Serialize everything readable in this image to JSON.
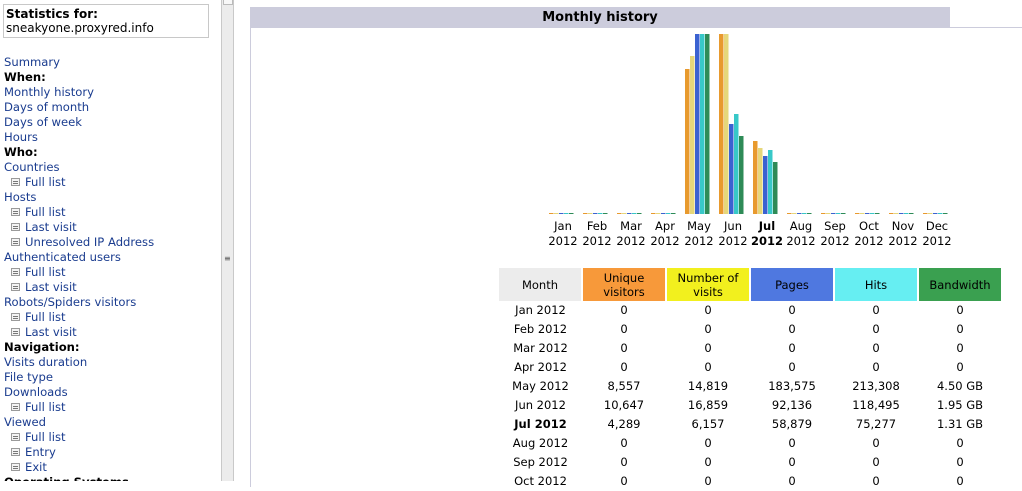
{
  "sidebar": {
    "stats_label": "Statistics for:",
    "site": "sneakyone.proxyred.info",
    "items": [
      {
        "type": "link",
        "label": "Summary"
      },
      {
        "type": "head",
        "label": "When:"
      },
      {
        "type": "link",
        "label": "Monthly history"
      },
      {
        "type": "link",
        "label": "Days of month"
      },
      {
        "type": "link",
        "label": "Days of week"
      },
      {
        "type": "link",
        "label": "Hours"
      },
      {
        "type": "head",
        "label": "Who:"
      },
      {
        "type": "link",
        "label": "Countries"
      },
      {
        "type": "sub",
        "label": "Full list"
      },
      {
        "type": "link",
        "label": "Hosts"
      },
      {
        "type": "sub",
        "label": "Full list"
      },
      {
        "type": "sub",
        "label": "Last visit"
      },
      {
        "type": "sub",
        "label": "Unresolved IP Address"
      },
      {
        "type": "link",
        "label": "Authenticated users"
      },
      {
        "type": "sub",
        "label": "Full list"
      },
      {
        "type": "sub",
        "label": "Last visit"
      },
      {
        "type": "link",
        "label": "Robots/Spiders visitors"
      },
      {
        "type": "sub",
        "label": "Full list"
      },
      {
        "type": "sub",
        "label": "Last visit"
      },
      {
        "type": "head",
        "label": "Navigation:"
      },
      {
        "type": "link",
        "label": "Visits duration"
      },
      {
        "type": "link",
        "label": "File type"
      },
      {
        "type": "link",
        "label": "Downloads"
      },
      {
        "type": "sub",
        "label": "Full list"
      },
      {
        "type": "link",
        "label": "Viewed"
      },
      {
        "type": "sub",
        "label": "Full list"
      },
      {
        "type": "sub",
        "label": "Entry"
      },
      {
        "type": "sub",
        "label": "Exit"
      },
      {
        "type": "head",
        "label": "Operating Systems"
      }
    ]
  },
  "main": {
    "title": "Monthly history",
    "current_month": "Jul"
  },
  "chart_data": {
    "type": "bar",
    "categories": [
      "Jan",
      "Feb",
      "Mar",
      "Apr",
      "May",
      "Jun",
      "Jul",
      "Aug",
      "Sep",
      "Oct",
      "Nov",
      "Dec"
    ],
    "year": "2012",
    "series": [
      {
        "name": "Unique visitors",
        "color": "#e89a2e",
        "values": [
          0,
          0,
          0,
          0,
          8557,
          10647,
          4289,
          0,
          0,
          0,
          0,
          0
        ]
      },
      {
        "name": "Number of visits",
        "color": "#e6d77a",
        "values": [
          0,
          0,
          0,
          0,
          14819,
          16859,
          6157,
          0,
          0,
          0,
          0,
          0
        ]
      },
      {
        "name": "Pages",
        "color": "#3b62d1",
        "values": [
          0,
          0,
          0,
          0,
          183575,
          92136,
          58879,
          0,
          0,
          0,
          0,
          0
        ]
      },
      {
        "name": "Hits",
        "color": "#38c8c8",
        "values": [
          0,
          0,
          0,
          0,
          213308,
          118495,
          75277,
          0,
          0,
          0,
          0,
          0
        ]
      },
      {
        "name": "Bandwidth",
        "color": "#2e8b57",
        "values": [
          0,
          0,
          0,
          0,
          4.5,
          1.95,
          1.31,
          0,
          0,
          0,
          0,
          0
        ]
      }
    ]
  },
  "table": {
    "headers": [
      {
        "label": "Month",
        "bg": "#ececec"
      },
      {
        "label": "Unique visitors",
        "bg": "#f7993a"
      },
      {
        "label": "Number of visits",
        "bg": "#f2f01e"
      },
      {
        "label": "Pages",
        "bg": "#4f78e0"
      },
      {
        "label": "Hits",
        "bg": "#66eef2"
      },
      {
        "label": "Bandwidth",
        "bg": "#3aa050"
      }
    ],
    "rows": [
      [
        "Jan 2012",
        "0",
        "0",
        "0",
        "0",
        "0"
      ],
      [
        "Feb 2012",
        "0",
        "0",
        "0",
        "0",
        "0"
      ],
      [
        "Mar 2012",
        "0",
        "0",
        "0",
        "0",
        "0"
      ],
      [
        "Apr 2012",
        "0",
        "0",
        "0",
        "0",
        "0"
      ],
      [
        "May 2012",
        "8,557",
        "14,819",
        "183,575",
        "213,308",
        "4.50 GB"
      ],
      [
        "Jun 2012",
        "10,647",
        "16,859",
        "92,136",
        "118,495",
        "1.95 GB"
      ],
      [
        "Jul 2012",
        "4,289",
        "6,157",
        "58,879",
        "75,277",
        "1.31 GB"
      ],
      [
        "Aug 2012",
        "0",
        "0",
        "0",
        "0",
        "0"
      ],
      [
        "Sep 2012",
        "0",
        "0",
        "0",
        "0",
        "0"
      ],
      [
        "Oct 2012",
        "0",
        "0",
        "0",
        "0",
        "0"
      ]
    ]
  }
}
